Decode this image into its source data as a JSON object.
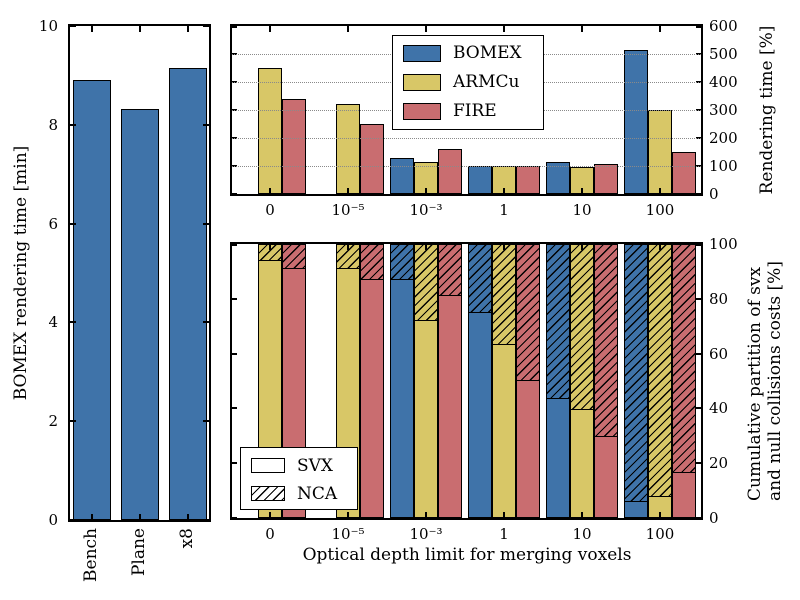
{
  "colors": {
    "bomex": "#3F73A9",
    "armcu": "#D8C767",
    "fire": "#C96D70",
    "edge": "#000000",
    "grid": "#8a8a8a",
    "background": "#ffffff"
  },
  "chart_data": [
    {
      "id": "left-bar-chart",
      "type": "bar",
      "ylabel": "BOMEX rendering time [min]",
      "categories": [
        "Bench",
        "Plane",
        "x8"
      ],
      "values": [
        8.9,
        8.33,
        9.15
      ],
      "ylim": [
        0,
        10
      ],
      "yticks": [
        0,
        2,
        4,
        6,
        8,
        10
      ],
      "bar_color": "bomex",
      "grid": false
    },
    {
      "id": "rendering-time-chart",
      "type": "bar",
      "ylabel": "Rendering time [%]",
      "categories": [
        "0",
        "10⁻⁵",
        "10⁻³",
        "1",
        "10",
        "100"
      ],
      "series": [
        {
          "name": "BOMEX",
          "color": "bomex",
          "values": [
            null,
            null,
            130,
            100,
            113,
            515
          ]
        },
        {
          "name": "ARMCu",
          "color": "armcu",
          "values": [
            450,
            320,
            115,
            100,
            95,
            300
          ]
        },
        {
          "name": "FIRE",
          "color": "fire",
          "values": [
            340,
            250,
            160,
            100,
            106,
            150
          ]
        }
      ],
      "ylim": [
        0,
        600
      ],
      "yticks": [
        0,
        100,
        200,
        300,
        400,
        500,
        600
      ],
      "grid": "horizontal dotted",
      "legend_position": "upper center",
      "yaxis_side": "right"
    },
    {
      "id": "cumulative-partition-chart",
      "type": "stacked-bar",
      "xlabel": "Optical depth limit for merging voxels",
      "ylabel_line1": "Cumulative partition of svx",
      "ylabel_line2": "and null collisions costs [%]",
      "categories": [
        "0",
        "10⁻⁵",
        "10⁻³",
        "1",
        "10",
        "100"
      ],
      "series": [
        {
          "name": "BOMEX",
          "color": "bomex",
          "svx": [
            null,
            null,
            87,
            75,
            43,
            5
          ],
          "nca": [
            null,
            null,
            13,
            25,
            57,
            95
          ]
        },
        {
          "name": "ARMCu",
          "color": "armcu",
          "svx": [
            94,
            91,
            72,
            63,
            39,
            7
          ],
          "nca": [
            6,
            9,
            28,
            37,
            61,
            93
          ]
        },
        {
          "name": "FIRE",
          "color": "fire",
          "svx": [
            91,
            87,
            81,
            50,
            29,
            16
          ],
          "nca": [
            9,
            13,
            19,
            50,
            71,
            84
          ]
        }
      ],
      "legend": [
        "SVX",
        "NCA"
      ],
      "ylim": [
        0,
        100
      ],
      "yticks": [
        0,
        20,
        40,
        60,
        80,
        100
      ],
      "legend_position": "lower left",
      "yaxis_side": "right",
      "grid": false
    }
  ]
}
